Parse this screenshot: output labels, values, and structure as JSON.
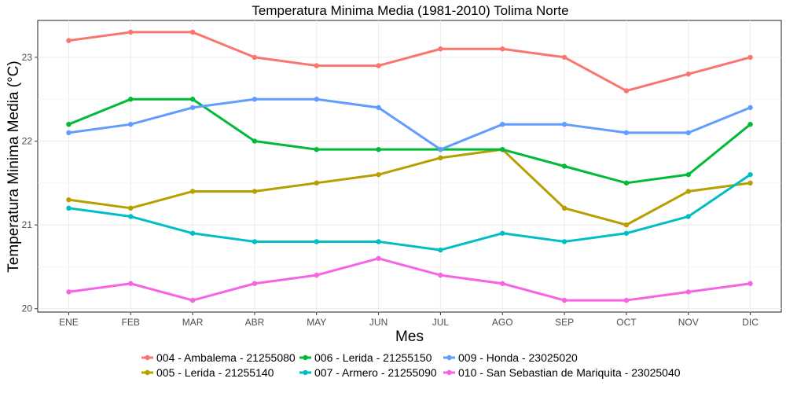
{
  "chart_data": {
    "type": "line",
    "title": "Temperatura Minima Media (1981-2010)  Tolima Norte",
    "xlabel": "Mes",
    "ylabel": "Temperatura Minima Media  (°C)",
    "ylim": [
      19.96,
      23.44
    ],
    "yticks": [
      20,
      21,
      22,
      23
    ],
    "categories": [
      "ENE",
      "FEB",
      "MAR",
      "ABR",
      "MAY",
      "JUN",
      "JUL",
      "AGO",
      "SEP",
      "OCT",
      "NOV",
      "DIC"
    ],
    "grid": true,
    "legend_position": "bottom",
    "series": [
      {
        "name": "004 - Ambalema - 21255080",
        "color": "#F8766D",
        "values": [
          23.2,
          23.3,
          23.3,
          23.0,
          22.9,
          22.9,
          23.1,
          23.1,
          23.0,
          22.6,
          22.8,
          23.0
        ]
      },
      {
        "name": "005 - Lerida - 21255140",
        "color": "#B79F00",
        "values": [
          21.3,
          21.2,
          21.4,
          21.4,
          21.5,
          21.6,
          21.8,
          21.9,
          21.2,
          21.0,
          21.4,
          21.5
        ]
      },
      {
        "name": "006 - Lerida - 21255150",
        "color": "#00BA38",
        "values": [
          22.2,
          22.5,
          22.5,
          22.0,
          21.9,
          21.9,
          21.9,
          21.9,
          21.7,
          21.5,
          21.6,
          22.2
        ]
      },
      {
        "name": "007 - Armero - 21255090",
        "color": "#00BFC4",
        "values": [
          21.2,
          21.1,
          20.9,
          20.8,
          20.8,
          20.8,
          20.7,
          20.9,
          20.8,
          20.9,
          21.1,
          21.6
        ]
      },
      {
        "name": "009 - Honda - 23025020",
        "color": "#619CFF",
        "values": [
          22.1,
          22.2,
          22.4,
          22.5,
          22.5,
          22.4,
          21.9,
          22.2,
          22.2,
          22.1,
          22.1,
          22.4
        ]
      },
      {
        "name": "010 - San Sebastian de Mariquita - 23025040",
        "color": "#F564E3",
        "values": [
          20.2,
          20.3,
          20.1,
          20.3,
          20.4,
          20.6,
          20.4,
          20.3,
          20.1,
          20.1,
          20.2,
          20.3
        ]
      }
    ]
  }
}
